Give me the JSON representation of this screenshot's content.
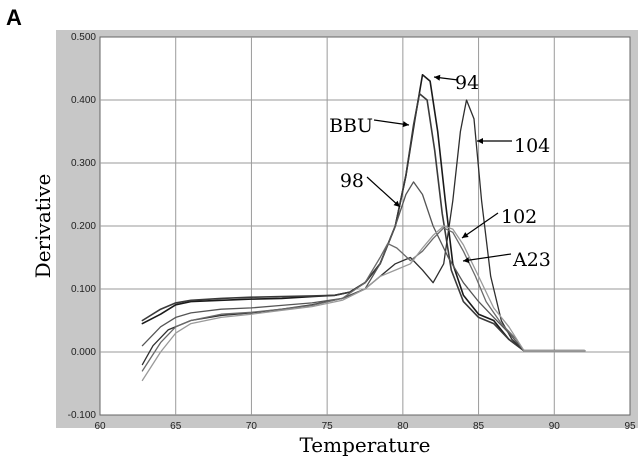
{
  "panel_label": "A",
  "chart_data": {
    "type": "line",
    "xlabel": "Temperature",
    "ylabel": "Derivative",
    "xlim": [
      60,
      95
    ],
    "ylim": [
      -0.1,
      0.5
    ],
    "x_ticks": [
      "60",
      "65",
      "70",
      "75",
      "80",
      "85",
      "90",
      "95"
    ],
    "y_ticks": [
      "-0.100",
      "0.000",
      "0.100",
      "0.200",
      "0.300",
      "0.400",
      "0.500"
    ],
    "grid": true,
    "series": [
      {
        "name": "94",
        "color": "#1a1a1a",
        "points": [
          [
            62.8,
            0.045
          ],
          [
            64,
            0.06
          ],
          [
            65,
            0.075
          ],
          [
            66,
            0.08
          ],
          [
            68,
            0.082
          ],
          [
            70,
            0.084
          ],
          [
            72,
            0.085
          ],
          [
            74,
            0.088
          ],
          [
            75.5,
            0.09
          ],
          [
            76.5,
            0.095
          ],
          [
            77.5,
            0.11
          ],
          [
            78.5,
            0.14
          ],
          [
            79.5,
            0.2
          ],
          [
            80.2,
            0.28
          ],
          [
            80.8,
            0.37
          ],
          [
            81.3,
            0.44
          ],
          [
            81.8,
            0.43
          ],
          [
            82.3,
            0.35
          ],
          [
            82.8,
            0.24
          ],
          [
            83.3,
            0.14
          ],
          [
            84,
            0.09
          ],
          [
            85,
            0.06
          ],
          [
            86,
            0.05
          ],
          [
            87,
            0.02
          ],
          [
            88,
            0.002
          ],
          [
            92,
            0.002
          ]
        ]
      },
      {
        "name": "BBU",
        "color": "#3a3a3a",
        "points": [
          [
            62.8,
            0.05
          ],
          [
            64,
            0.068
          ],
          [
            65,
            0.078
          ],
          [
            66,
            0.082
          ],
          [
            68,
            0.085
          ],
          [
            70,
            0.087
          ],
          [
            72,
            0.088
          ],
          [
            74,
            0.089
          ],
          [
            75.5,
            0.09
          ],
          [
            76.5,
            0.095
          ],
          [
            77.5,
            0.11
          ],
          [
            78.5,
            0.14
          ],
          [
            79.5,
            0.2
          ],
          [
            80.2,
            0.28
          ],
          [
            80.7,
            0.36
          ],
          [
            81.1,
            0.41
          ],
          [
            81.6,
            0.4
          ],
          [
            82.1,
            0.32
          ],
          [
            82.6,
            0.22
          ],
          [
            83.2,
            0.13
          ],
          [
            84,
            0.08
          ],
          [
            85,
            0.055
          ],
          [
            86,
            0.045
          ],
          [
            87,
            0.02
          ],
          [
            88,
            0.002
          ],
          [
            92,
            0.002
          ]
        ]
      },
      {
        "name": "104",
        "color": "#2e2e2e",
        "points": [
          [
            62.8,
            -0.02
          ],
          [
            63.5,
            0.01
          ],
          [
            64.5,
            0.035
          ],
          [
            66,
            0.05
          ],
          [
            68,
            0.058
          ],
          [
            70,
            0.062
          ],
          [
            72,
            0.068
          ],
          [
            74,
            0.075
          ],
          [
            76,
            0.085
          ],
          [
            77.5,
            0.1
          ],
          [
            78.5,
            0.12
          ],
          [
            79.5,
            0.14
          ],
          [
            80.5,
            0.15
          ],
          [
            81.3,
            0.13
          ],
          [
            82,
            0.11
          ],
          [
            82.7,
            0.14
          ],
          [
            83.3,
            0.24
          ],
          [
            83.8,
            0.35
          ],
          [
            84.2,
            0.4
          ],
          [
            84.7,
            0.37
          ],
          [
            85.2,
            0.24
          ],
          [
            85.8,
            0.12
          ],
          [
            86.5,
            0.05
          ],
          [
            87.2,
            0.02
          ],
          [
            88,
            0.002
          ],
          [
            92,
            0.002
          ]
        ]
      },
      {
        "name": "98",
        "color": "#555555",
        "points": [
          [
            62.8,
            0.01
          ],
          [
            64,
            0.04
          ],
          [
            65,
            0.055
          ],
          [
            66,
            0.062
          ],
          [
            68,
            0.068
          ],
          [
            70,
            0.07
          ],
          [
            72,
            0.074
          ],
          [
            74,
            0.078
          ],
          [
            76,
            0.085
          ],
          [
            77.5,
            0.1
          ],
          [
            78.5,
            0.14
          ],
          [
            79.5,
            0.2
          ],
          [
            80.2,
            0.25
          ],
          [
            80.7,
            0.27
          ],
          [
            81.3,
            0.25
          ],
          [
            82,
            0.2
          ],
          [
            83,
            0.15
          ],
          [
            84,
            0.11
          ],
          [
            85,
            0.08
          ],
          [
            86,
            0.055
          ],
          [
            87,
            0.03
          ],
          [
            88,
            0.002
          ],
          [
            92,
            0.002
          ]
        ]
      },
      {
        "name": "102",
        "color": "#6a6a6a",
        "points": [
          [
            62.8,
            -0.03
          ],
          [
            64,
            0.015
          ],
          [
            65,
            0.04
          ],
          [
            66,
            0.05
          ],
          [
            68,
            0.06
          ],
          [
            70,
            0.063
          ],
          [
            72,
            0.068
          ],
          [
            74,
            0.074
          ],
          [
            76,
            0.085
          ],
          [
            77.5,
            0.11
          ],
          [
            78.5,
            0.15
          ],
          [
            79,
            0.172
          ],
          [
            79.6,
            0.165
          ],
          [
            80.5,
            0.145
          ],
          [
            81.3,
            0.16
          ],
          [
            82,
            0.18
          ],
          [
            82.7,
            0.197
          ],
          [
            83.3,
            0.19
          ],
          [
            84,
            0.16
          ],
          [
            84.8,
            0.12
          ],
          [
            85.5,
            0.08
          ],
          [
            86.5,
            0.045
          ],
          [
            87.5,
            0.02
          ],
          [
            88,
            0.002
          ],
          [
            92,
            0.002
          ]
        ]
      },
      {
        "name": "A23",
        "color": "#9a9a9a",
        "points": [
          [
            62.8,
            -0.045
          ],
          [
            64,
            0.0
          ],
          [
            65,
            0.03
          ],
          [
            66,
            0.045
          ],
          [
            68,
            0.055
          ],
          [
            70,
            0.06
          ],
          [
            72,
            0.066
          ],
          [
            74,
            0.072
          ],
          [
            76,
            0.082
          ],
          [
            77.5,
            0.1
          ],
          [
            78.5,
            0.12
          ],
          [
            79.5,
            0.13
          ],
          [
            80.5,
            0.14
          ],
          [
            81.3,
            0.165
          ],
          [
            82,
            0.185
          ],
          [
            82.7,
            0.2
          ],
          [
            83.3,
            0.195
          ],
          [
            84,
            0.17
          ],
          [
            85,
            0.12
          ],
          [
            86,
            0.07
          ],
          [
            87,
            0.04
          ],
          [
            88,
            0.002
          ],
          [
            92,
            0.002
          ]
        ]
      }
    ]
  },
  "annotations": [
    {
      "text": "94",
      "color_hint": ""
    },
    {
      "text": "BBU",
      "color_hint": ""
    },
    {
      "text": "104",
      "color_hint": ""
    },
    {
      "text": "98",
      "color_hint": ""
    },
    {
      "text": "102",
      "color_hint": ""
    },
    {
      "text": "A23",
      "color_hint": ""
    }
  ]
}
